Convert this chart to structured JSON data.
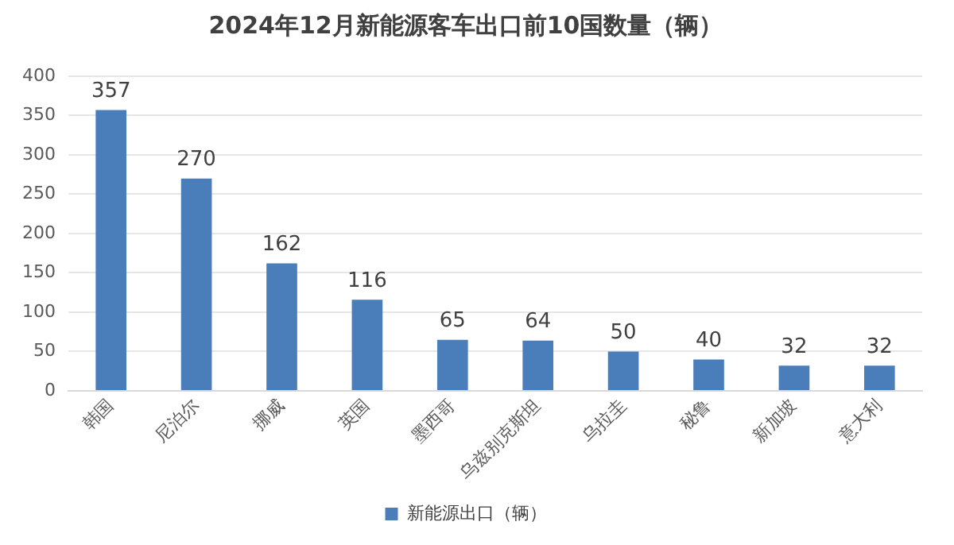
{
  "chart_data": {
    "type": "bar",
    "title": "2024年12月新能源客车出口前10国数量（辆）",
    "categories": [
      "韩国",
      "尼泊尔",
      "挪威",
      "英国",
      "墨西哥",
      "乌兹别克斯坦",
      "乌拉圭",
      "秘鲁",
      "新加坡",
      "意大利"
    ],
    "series": [
      {
        "name": "新能源出口（辆）",
        "color": "#4a7ebb",
        "values": [
          357,
          270,
          162,
          116,
          65,
          64,
          50,
          40,
          32,
          32
        ]
      }
    ],
    "ylim": [
      0,
      400
    ],
    "yticks": [
      0,
      50,
      100,
      150,
      200,
      250,
      300,
      350,
      400
    ],
    "grid": "y",
    "legend": "bottom",
    "data_labels": true
  }
}
